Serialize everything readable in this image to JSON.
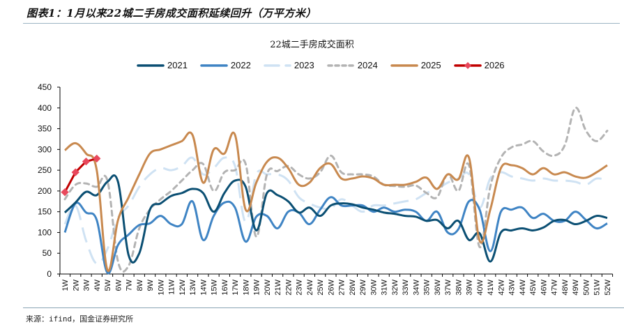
{
  "figure": {
    "title": "图表1：1月以来22城二手房成交面积延续回升（万平方米）",
    "source": "来源：ifind，国金证券研究所"
  },
  "chart_data": {
    "type": "line",
    "title": "22城二手房成交面积",
    "xlabel": "",
    "ylabel": "",
    "ylim": [
      0,
      450
    ],
    "yticks": [
      0,
      50,
      100,
      150,
      200,
      250,
      300,
      350,
      400,
      450
    ],
    "grid": false,
    "legend_position": "top",
    "categories": [
      "1W",
      "2W",
      "3W",
      "4W",
      "5W",
      "6W",
      "7W",
      "8W",
      "9W",
      "10W",
      "11W",
      "12W",
      "13W",
      "14W",
      "15W",
      "16W",
      "17W",
      "18W",
      "19W",
      "20W",
      "21W",
      "22W",
      "23W",
      "24W",
      "25W",
      "26W",
      "27W",
      "28W",
      "29W",
      "30W",
      "31W",
      "32W",
      "33W",
      "34W",
      "35W",
      "36W",
      "37W",
      "38W",
      "39W",
      "40W",
      "41W",
      "42W",
      "43W",
      "44W",
      "45W",
      "46W",
      "47W",
      "48W",
      "49W",
      "50W",
      "51W",
      "52W"
    ],
    "series": [
      {
        "name": "2021",
        "color": "#0b4f73",
        "style": "solid",
        "values": [
          148,
          172,
          198,
          190,
          222,
          222,
          45,
          50,
          155,
          170,
          188,
          195,
          205,
          195,
          150,
          195,
          225,
          210,
          105,
          195,
          190,
          175,
          148,
          160,
          140,
          165,
          170,
          168,
          160,
          155,
          148,
          145,
          140,
          138,
          128,
          130,
          110,
          128,
          82,
          98,
          30,
          100,
          105,
          110,
          105,
          112,
          128,
          130,
          120,
          128,
          140,
          135
        ]
      },
      {
        "name": "2022",
        "color": "#3f84c4",
        "style": "solid",
        "values": [
          100,
          170,
          148,
          130,
          3,
          70,
          95,
          118,
          122,
          140,
          120,
          120,
          175,
          82,
          140,
          172,
          160,
          78,
          138,
          140,
          110,
          150,
          148,
          120,
          155,
          185,
          165,
          165,
          165,
          150,
          160,
          150,
          155,
          150,
          128,
          150,
          100,
          108,
          175,
          155,
          55,
          150,
          155,
          160,
          135,
          145,
          128,
          128,
          150,
          130,
          110,
          122
        ]
      },
      {
        "name": "2023",
        "color": "#cfe2f3",
        "style": "long-dash",
        "values": [
          120,
          165,
          80,
          25,
          60,
          135,
          165,
          210,
          240,
          255,
          250,
          260,
          280,
          240,
          255,
          280,
          260,
          125,
          240,
          240,
          240,
          225,
          185,
          170,
          160,
          158,
          180,
          165,
          150,
          165,
          165,
          170,
          175,
          180,
          195,
          205,
          220,
          230,
          240,
          160,
          230,
          245,
          235,
          230,
          225,
          230,
          225,
          225,
          222,
          215,
          230,
          225
        ]
      },
      {
        "name": "2024",
        "color": "#b3b3b3",
        "style": "dash",
        "values": [
          180,
          215,
          218,
          210,
          225,
          30,
          20,
          110,
          155,
          180,
          200,
          225,
          250,
          265,
          200,
          245,
          250,
          265,
          90,
          240,
          248,
          260,
          240,
          230,
          245,
          285,
          245,
          240,
          240,
          235,
          215,
          212,
          210,
          213,
          195,
          185,
          240,
          200,
          262,
          65,
          210,
          280,
          305,
          312,
          320,
          295,
          285,
          310,
          400,
          345,
          320,
          345
        ]
      },
      {
        "name": "2025",
        "color": "#c8894f",
        "style": "solid",
        "values": [
          298,
          315,
          290,
          250,
          10,
          130,
          185,
          240,
          290,
          300,
          310,
          320,
          335,
          220,
          300,
          290,
          335,
          155,
          220,
          270,
          280,
          255,
          215,
          220,
          255,
          265,
          230,
          230,
          235,
          230,
          215,
          215,
          215,
          222,
          232,
          205,
          240,
          228,
          280,
          80,
          155,
          255,
          262,
          255,
          240,
          255,
          240,
          245,
          235,
          232,
          245,
          262
        ]
      },
      {
        "name": "2026",
        "color": "#c00000",
        "marker_color": "#e8485c",
        "style": "solid-marker",
        "values": [
          197,
          245,
          271,
          278
        ]
      }
    ]
  }
}
